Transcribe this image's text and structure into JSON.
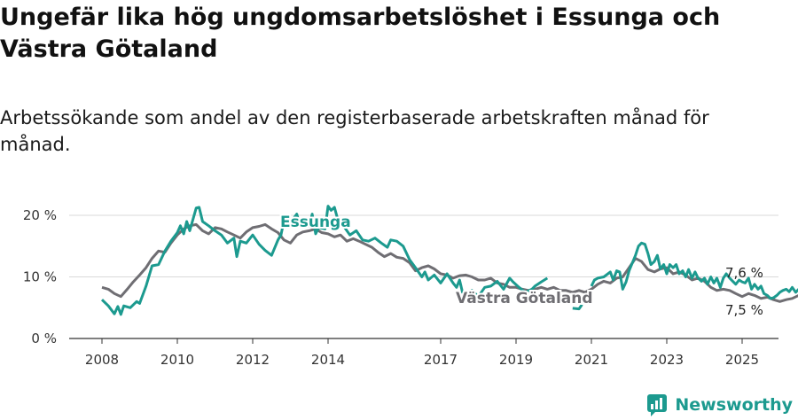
{
  "title": "Ungefär lika hög ungdomsarbetslöshet i Essunga och Västra Götaland",
  "subtitle": "Arbetssökande som andel av den registerbaserade arbetskraften månad för månad.",
  "brand": "Newsworthy",
  "colors": {
    "essunga": "#1c9a8f",
    "vg": "#6f6e73",
    "grid": "#d9d9d9",
    "axis": "#333333"
  },
  "chart_data": {
    "type": "line",
    "title": "Ungefär lika hög ungdomsarbetslöshet i Essunga och Västra Götaland",
    "subtitle": "Arbetssökande som andel av den registerbaserade arbetskraften månad för månad.",
    "xlabel": "",
    "ylabel": "",
    "ylim": [
      0,
      20
    ],
    "xlim": [
      2007.5,
      2025.6
    ],
    "yticks": [
      0,
      10,
      20
    ],
    "ytick_labels": [
      "0 %",
      "10 %",
      "20 %"
    ],
    "xticks": [
      2008,
      2010,
      2012,
      2014,
      2017,
      2019,
      2021,
      2023,
      2025
    ],
    "xtick_labels": [
      "2008",
      "2010",
      "2012",
      "2014",
      "2017",
      "2019",
      "2021",
      "2023",
      "2025"
    ],
    "grid": true,
    "legend": "none",
    "series": [
      {
        "name": "Essunga",
        "end_label": "7,6 %",
        "points": [
          [
            2008.0,
            6.3
          ],
          [
            2008.17,
            5.3
          ],
          [
            2008.33,
            4.0
          ],
          [
            2008.42,
            5.2
          ],
          [
            2008.5,
            3.9
          ],
          [
            2008.58,
            5.3
          ],
          [
            2008.75,
            5.0
          ],
          [
            2008.92,
            6.0
          ],
          [
            2009.0,
            5.7
          ],
          [
            2009.17,
            8.5
          ],
          [
            2009.33,
            11.8
          ],
          [
            2009.5,
            12.0
          ],
          [
            2009.67,
            14.2
          ],
          [
            2009.83,
            15.8
          ],
          [
            2010.0,
            17.2
          ],
          [
            2010.08,
            18.3
          ],
          [
            2010.17,
            17.0
          ],
          [
            2010.25,
            19.0
          ],
          [
            2010.33,
            17.5
          ],
          [
            2010.5,
            21.2
          ],
          [
            2010.58,
            21.3
          ],
          [
            2010.67,
            19.0
          ],
          [
            2010.83,
            18.3
          ],
          [
            2011.0,
            17.5
          ],
          [
            2011.17,
            16.8
          ],
          [
            2011.33,
            15.5
          ],
          [
            2011.5,
            16.3
          ],
          [
            2011.58,
            13.3
          ],
          [
            2011.67,
            15.8
          ],
          [
            2011.83,
            15.5
          ],
          [
            2012.0,
            16.8
          ],
          [
            2012.17,
            15.3
          ],
          [
            2012.33,
            14.3
          ],
          [
            2012.5,
            13.5
          ],
          [
            2012.67,
            16.0
          ],
          [
            2012.75,
            16.8
          ],
          [
            2012.83,
            19.2
          ],
          [
            2012.92,
            19.8
          ],
          [
            2013.0,
            18.8
          ],
          [
            2013.17,
            20.2
          ],
          [
            2013.25,
            18.5
          ],
          [
            2013.33,
            19.2
          ],
          [
            2013.42,
            18.8
          ],
          [
            2013.5,
            18.3
          ],
          [
            2013.58,
            20.2
          ],
          [
            2013.67,
            17.0
          ],
          [
            2013.75,
            18.0
          ],
          [
            2013.92,
            17.8
          ],
          [
            2014.0,
            21.5
          ],
          [
            2014.08,
            20.8
          ],
          [
            2014.17,
            21.3
          ],
          [
            2014.25,
            19.5
          ],
          [
            2014.42,
            18.2
          ],
          [
            2014.58,
            16.8
          ],
          [
            2014.75,
            17.5
          ],
          [
            2014.92,
            16.0
          ],
          [
            2015.08,
            15.8
          ],
          [
            2015.25,
            16.3
          ],
          [
            2015.42,
            15.5
          ],
          [
            2015.58,
            14.8
          ],
          [
            2015.67,
            16.0
          ],
          [
            2015.83,
            15.8
          ],
          [
            2016.0,
            15.0
          ],
          [
            2016.17,
            12.8
          ],
          [
            2016.33,
            11.5
          ],
          [
            2016.5,
            10.0
          ],
          [
            2016.58,
            10.8
          ],
          [
            2016.67,
            9.5
          ],
          [
            2016.83,
            10.3
          ],
          [
            2017.0,
            9.0
          ],
          [
            2017.17,
            10.5
          ],
          [
            2017.33,
            9.0
          ],
          [
            2017.42,
            8.3
          ],
          [
            2017.5,
            9.5
          ],
          [
            2017.58,
            7.5
          ],
          [
            2017.67,
            7.0
          ],
          [
            2017.83,
            7.8
          ],
          [
            2018.0,
            6.8
          ],
          [
            2018.17,
            8.3
          ],
          [
            2018.33,
            8.5
          ],
          [
            2018.5,
            9.3
          ],
          [
            2018.67,
            8.0
          ],
          [
            2018.83,
            9.8
          ],
          [
            2018.92,
            9.2
          ],
          [
            2019.08,
            8.3
          ],
          [
            2019.25,
            7.5
          ],
          [
            2019.42,
            8.0
          ],
          [
            2019.5,
            8.5
          ],
          [
            2019.67,
            9.2
          ],
          [
            2019.83,
            9.8
          ]
        ],
        "gap_note": "no Essunga values plotted 2019.9–2020.7 apart from the short segment around 2020.5",
        "points_after_gap": [
          [
            2020.5,
            4.9
          ],
          [
            2020.67,
            4.8
          ],
          [
            2020.75,
            5.5
          ]
        ],
        "points_late": [
          [
            2021.0,
            8.5
          ],
          [
            2021.08,
            9.5
          ],
          [
            2021.17,
            9.8
          ],
          [
            2021.33,
            10.0
          ],
          [
            2021.5,
            10.8
          ],
          [
            2021.58,
            9.5
          ],
          [
            2021.67,
            11.0
          ],
          [
            2021.75,
            10.8
          ],
          [
            2021.83,
            8.0
          ],
          [
            2021.92,
            9.2
          ],
          [
            2022.0,
            11.0
          ],
          [
            2022.17,
            13.5
          ],
          [
            2022.25,
            15.0
          ],
          [
            2022.33,
            15.5
          ],
          [
            2022.42,
            15.3
          ],
          [
            2022.5,
            13.8
          ],
          [
            2022.58,
            12.0
          ],
          [
            2022.67,
            12.5
          ],
          [
            2022.75,
            13.5
          ],
          [
            2022.83,
            11.3
          ],
          [
            2022.92,
            12.0
          ],
          [
            2023.0,
            10.5
          ],
          [
            2023.08,
            12.0
          ],
          [
            2023.17,
            11.5
          ],
          [
            2023.25,
            12.0
          ],
          [
            2023.33,
            10.5
          ],
          [
            2023.42,
            11.0
          ],
          [
            2023.5,
            10.0
          ],
          [
            2023.58,
            11.2
          ],
          [
            2023.67,
            9.8
          ],
          [
            2023.75,
            10.8
          ],
          [
            2023.83,
            9.8
          ],
          [
            2023.92,
            9.3
          ],
          [
            2024.0,
            9.8
          ],
          [
            2024.08,
            8.8
          ],
          [
            2024.17,
            10.0
          ],
          [
            2024.25,
            9.0
          ],
          [
            2024.33,
            9.8
          ],
          [
            2024.42,
            8.3
          ],
          [
            2024.5,
            9.8
          ],
          [
            2024.58,
            10.5
          ],
          [
            2024.67,
            9.8
          ],
          [
            2024.75,
            9.3
          ],
          [
            2024.83,
            8.8
          ],
          [
            2024.92,
            9.5
          ],
          [
            2025.0,
            9.2
          ],
          [
            2025.08,
            9.0
          ],
          [
            2025.17,
            9.8
          ],
          [
            2025.25,
            8.0
          ],
          [
            2025.33,
            8.8
          ],
          [
            2025.42,
            8.0
          ],
          [
            2025.5,
            8.5
          ],
          [
            2025.58,
            7.3
          ],
          [
            2025.67,
            7.0
          ],
          [
            2025.75,
            6.5
          ],
          [
            2025.83,
            6.6
          ],
          [
            2025.92,
            7.0
          ],
          [
            2026.0,
            7.5
          ],
          [
            2026.08,
            7.8
          ],
          [
            2026.17,
            8.0
          ],
          [
            2026.25,
            7.6
          ],
          [
            2026.33,
            8.3
          ],
          [
            2026.42,
            7.5
          ],
          [
            2026.5,
            8.0
          ],
          [
            2026.58,
            8.5
          ],
          [
            2026.67,
            7.6
          ]
        ]
      },
      {
        "name": "Västra Götaland",
        "end_label": "7,5 %",
        "points": [
          [
            2008.0,
            8.3
          ],
          [
            2008.17,
            8.0
          ],
          [
            2008.33,
            7.3
          ],
          [
            2008.5,
            6.8
          ],
          [
            2008.67,
            8.0
          ],
          [
            2008.83,
            9.2
          ],
          [
            2009.0,
            10.3
          ],
          [
            2009.17,
            11.5
          ],
          [
            2009.33,
            13.0
          ],
          [
            2009.5,
            14.2
          ],
          [
            2009.67,
            14.0
          ],
          [
            2009.83,
            15.5
          ],
          [
            2010.0,
            16.8
          ],
          [
            2010.17,
            17.8
          ],
          [
            2010.33,
            18.3
          ],
          [
            2010.5,
            18.5
          ],
          [
            2010.67,
            17.5
          ],
          [
            2010.83,
            17.0
          ],
          [
            2011.0,
            18.0
          ],
          [
            2011.17,
            17.8
          ],
          [
            2011.33,
            17.3
          ],
          [
            2011.5,
            16.8
          ],
          [
            2011.67,
            16.3
          ],
          [
            2011.83,
            17.3
          ],
          [
            2012.0,
            18.0
          ],
          [
            2012.17,
            18.2
          ],
          [
            2012.33,
            18.5
          ],
          [
            2012.5,
            17.8
          ],
          [
            2012.67,
            17.2
          ],
          [
            2012.83,
            16.0
          ],
          [
            2013.0,
            15.5
          ],
          [
            2013.17,
            16.8
          ],
          [
            2013.33,
            17.3
          ],
          [
            2013.5,
            17.5
          ],
          [
            2013.67,
            17.8
          ],
          [
            2013.83,
            17.2
          ],
          [
            2014.0,
            17.0
          ],
          [
            2014.17,
            16.5
          ],
          [
            2014.33,
            16.8
          ],
          [
            2014.5,
            15.8
          ],
          [
            2014.67,
            16.2
          ],
          [
            2014.83,
            15.8
          ],
          [
            2015.0,
            15.3
          ],
          [
            2015.17,
            14.8
          ],
          [
            2015.33,
            14.0
          ],
          [
            2015.5,
            13.3
          ],
          [
            2015.67,
            13.8
          ],
          [
            2015.83,
            13.2
          ],
          [
            2016.0,
            13.0
          ],
          [
            2016.17,
            12.3
          ],
          [
            2016.33,
            11.0
          ],
          [
            2016.5,
            11.5
          ],
          [
            2016.67,
            11.8
          ],
          [
            2016.83,
            11.3
          ],
          [
            2017.0,
            10.5
          ],
          [
            2017.17,
            10.3
          ],
          [
            2017.33,
            9.8
          ],
          [
            2017.5,
            10.2
          ],
          [
            2017.67,
            10.3
          ],
          [
            2017.83,
            10.0
          ],
          [
            2018.0,
            9.5
          ],
          [
            2018.17,
            9.5
          ],
          [
            2018.33,
            9.8
          ],
          [
            2018.5,
            9.0
          ],
          [
            2018.67,
            8.8
          ],
          [
            2018.83,
            8.3
          ],
          [
            2019.0,
            8.3
          ],
          [
            2019.17,
            8.0
          ],
          [
            2019.33,
            7.8
          ],
          [
            2019.5,
            8.0
          ],
          [
            2019.67,
            8.3
          ],
          [
            2019.83,
            8.0
          ],
          [
            2020.0,
            8.3
          ],
          [
            2020.17,
            7.8
          ],
          [
            2020.33,
            7.8
          ],
          [
            2020.5,
            7.5
          ],
          [
            2020.67,
            7.8
          ],
          [
            2020.83,
            7.5
          ],
          [
            2021.0,
            8.0
          ],
          [
            2021.17,
            8.8
          ],
          [
            2021.33,
            9.3
          ],
          [
            2021.5,
            9.0
          ],
          [
            2021.67,
            9.8
          ],
          [
            2021.83,
            10.0
          ],
          [
            2022.0,
            11.5
          ],
          [
            2022.17,
            13.0
          ],
          [
            2022.33,
            12.5
          ],
          [
            2022.5,
            11.2
          ],
          [
            2022.67,
            10.8
          ],
          [
            2022.83,
            11.3
          ],
          [
            2023.0,
            11.5
          ],
          [
            2023.17,
            10.5
          ],
          [
            2023.33,
            10.8
          ],
          [
            2023.5,
            10.3
          ],
          [
            2023.67,
            9.5
          ],
          [
            2023.83,
            9.8
          ],
          [
            2024.0,
            9.3
          ],
          [
            2024.17,
            8.3
          ],
          [
            2024.33,
            7.8
          ],
          [
            2024.5,
            8.0
          ],
          [
            2024.67,
            7.8
          ],
          [
            2024.83,
            7.3
          ],
          [
            2025.0,
            6.8
          ],
          [
            2025.17,
            7.3
          ],
          [
            2025.33,
            7.0
          ],
          [
            2025.5,
            6.5
          ],
          [
            2025.67,
            6.7
          ],
          [
            2025.83,
            6.3
          ],
          [
            2026.0,
            6.0
          ],
          [
            2026.17,
            6.3
          ],
          [
            2026.33,
            6.5
          ],
          [
            2026.5,
            7.0
          ],
          [
            2026.67,
            7.5
          ]
        ]
      }
    ]
  }
}
